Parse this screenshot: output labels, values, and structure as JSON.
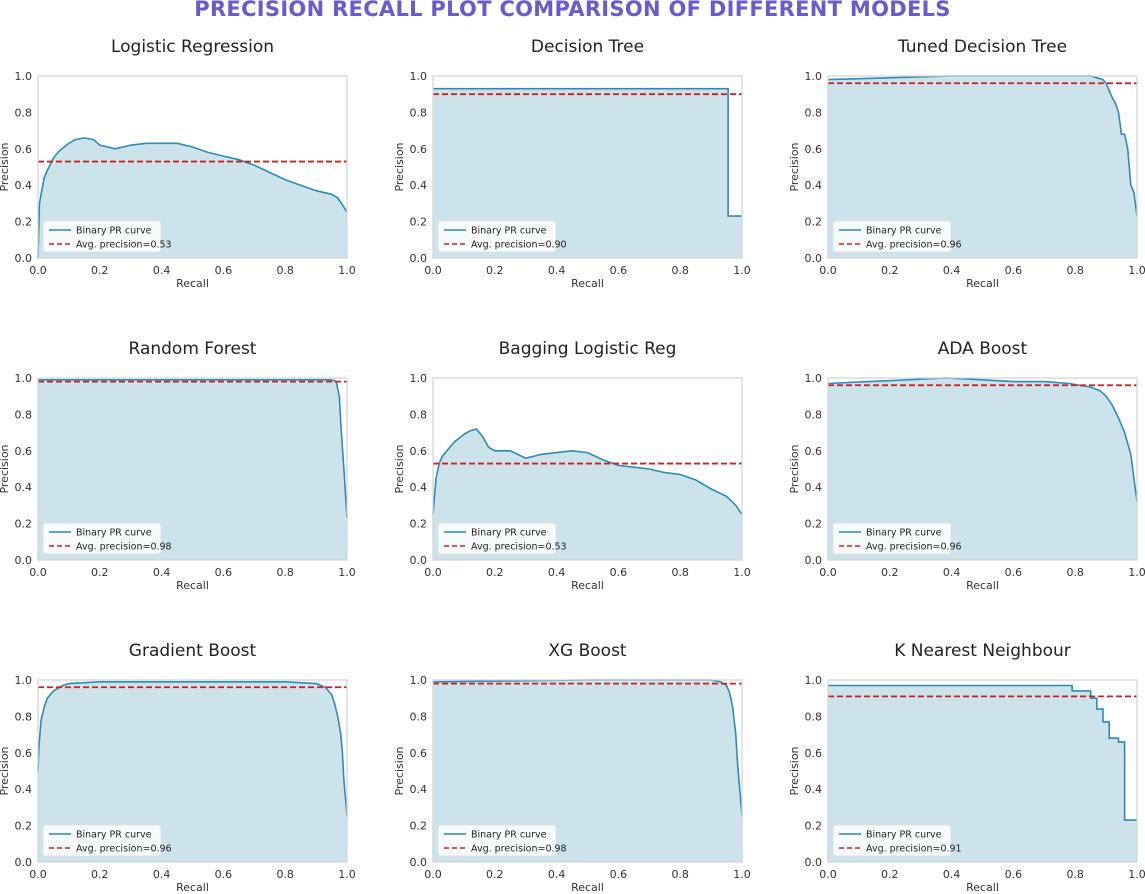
{
  "figure": {
    "suptitle": "PRECISION RECALL PLOT COMPARISON OF DIFFERENT MODELS",
    "colors": {
      "title": "#6a5acd",
      "curve": "#2e8bb5",
      "fill": "#cde3ec",
      "avg_line": "#cc1f1f",
      "axes": "#cfd3d8"
    }
  },
  "chart_data": [
    {
      "type": "area",
      "title": "Logistic Regression",
      "xlabel": "Recall",
      "ylabel": "Precision",
      "xlim": [
        0,
        1
      ],
      "ylim": [
        0,
        1
      ],
      "xticks": [
        "0.0",
        "0.2",
        "0.4",
        "0.6",
        "0.8",
        "1.0"
      ],
      "yticks": [
        "0.0",
        "0.2",
        "0.4",
        "0.6",
        "0.8",
        "1.0"
      ],
      "grid": false,
      "legend_position": "lower left",
      "legend": [
        "Binary PR curve",
        "Avg. precision=0.53"
      ],
      "avg_precision": 0.53,
      "curve": {
        "x": [
          0,
          0.005,
          0.01,
          0.02,
          0.03,
          0.05,
          0.07,
          0.1,
          0.12,
          0.15,
          0.18,
          0.2,
          0.25,
          0.3,
          0.35,
          0.4,
          0.45,
          0.5,
          0.55,
          0.6,
          0.65,
          0.7,
          0.75,
          0.8,
          0.85,
          0.9,
          0.95,
          0.97,
          0.99,
          1.0
        ],
        "y": [
          0.0,
          0.3,
          0.35,
          0.44,
          0.48,
          0.55,
          0.59,
          0.63,
          0.65,
          0.66,
          0.65,
          0.62,
          0.6,
          0.62,
          0.63,
          0.63,
          0.63,
          0.61,
          0.58,
          0.56,
          0.54,
          0.51,
          0.47,
          0.43,
          0.4,
          0.37,
          0.35,
          0.33,
          0.28,
          0.25
        ]
      }
    },
    {
      "type": "area",
      "title": "Decision Tree",
      "xlabel": "Recall",
      "ylabel": "Precision",
      "xlim": [
        0,
        1
      ],
      "ylim": [
        0,
        1
      ],
      "xticks": [
        "0.0",
        "0.2",
        "0.4",
        "0.6",
        "0.8",
        "1.0"
      ],
      "yticks": [
        "0.0",
        "0.2",
        "0.4",
        "0.6",
        "0.8",
        "1.0"
      ],
      "grid": false,
      "legend_position": "lower left",
      "legend": [
        "Binary PR curve",
        "Avg. precision=0.90"
      ],
      "avg_precision": 0.9,
      "curve": {
        "x": [
          0,
          0.955,
          0.955,
          1.0
        ],
        "y": [
          0.93,
          0.93,
          0.23,
          0.23
        ]
      }
    },
    {
      "type": "area",
      "title": "Tuned Decision Tree",
      "xlabel": "Recall",
      "ylabel": "Precision",
      "xlim": [
        0,
        1
      ],
      "ylim": [
        0,
        1
      ],
      "xticks": [
        "0.0",
        "0.2",
        "0.4",
        "0.6",
        "0.8",
        "1.0"
      ],
      "yticks": [
        "0.0",
        "0.2",
        "0.4",
        "0.6",
        "0.8",
        "1.0"
      ],
      "grid": false,
      "legend_position": "lower left",
      "legend": [
        "Binary PR curve",
        "Avg. precision=0.96"
      ],
      "avg_precision": 0.96,
      "curve": {
        "x": [
          0,
          0.4,
          0.85,
          0.87,
          0.89,
          0.9,
          0.91,
          0.92,
          0.93,
          0.94,
          0.95,
          0.96,
          0.97,
          0.98,
          0.99,
          1.0
        ],
        "y": [
          0.98,
          1.0,
          1.0,
          0.99,
          0.98,
          0.96,
          0.92,
          0.88,
          0.85,
          0.8,
          0.68,
          0.68,
          0.6,
          0.4,
          0.36,
          0.23
        ]
      }
    },
    {
      "type": "area",
      "title": "Random Forest",
      "xlabel": "Recall",
      "ylabel": "Precision",
      "xlim": [
        0,
        1
      ],
      "ylim": [
        0,
        1
      ],
      "xticks": [
        "0.0",
        "0.2",
        "0.4",
        "0.6",
        "0.8",
        "1.0"
      ],
      "yticks": [
        "0.0",
        "0.2",
        "0.4",
        "0.6",
        "0.8",
        "1.0"
      ],
      "grid": false,
      "legend_position": "lower left",
      "legend": [
        "Binary PR curve",
        "Avg. precision=0.98"
      ],
      "avg_precision": 0.98,
      "curve": {
        "x": [
          0,
          0.9,
          0.95,
          0.965,
          0.975,
          0.98,
          0.985,
          0.99,
          0.995,
          1.0
        ],
        "y": [
          0.99,
          0.99,
          0.99,
          0.98,
          0.9,
          0.75,
          0.62,
          0.5,
          0.36,
          0.23
        ]
      }
    },
    {
      "type": "area",
      "title": "Bagging Logistic Reg",
      "xlabel": "Recall",
      "ylabel": "Precision",
      "xlim": [
        0,
        1
      ],
      "ylim": [
        0,
        1
      ],
      "xticks": [
        "0.0",
        "0.2",
        "0.4",
        "0.6",
        "0.8",
        "1.0"
      ],
      "yticks": [
        "0.0",
        "0.2",
        "0.4",
        "0.6",
        "0.8",
        "1.0"
      ],
      "grid": false,
      "legend_position": "lower left",
      "legend": [
        "Binary PR curve",
        "Avg. precision=0.53"
      ],
      "avg_precision": 0.53,
      "curve": {
        "x": [
          0,
          0.005,
          0.01,
          0.02,
          0.03,
          0.05,
          0.07,
          0.1,
          0.12,
          0.14,
          0.16,
          0.18,
          0.2,
          0.25,
          0.3,
          0.35,
          0.4,
          0.45,
          0.5,
          0.55,
          0.6,
          0.65,
          0.7,
          0.75,
          0.8,
          0.85,
          0.9,
          0.95,
          0.98,
          1.0
        ],
        "y": [
          0.25,
          0.35,
          0.45,
          0.53,
          0.57,
          0.61,
          0.65,
          0.69,
          0.71,
          0.72,
          0.68,
          0.62,
          0.6,
          0.6,
          0.56,
          0.58,
          0.59,
          0.6,
          0.59,
          0.55,
          0.52,
          0.51,
          0.5,
          0.48,
          0.47,
          0.44,
          0.39,
          0.35,
          0.3,
          0.25
        ]
      }
    },
    {
      "type": "area",
      "title": "ADA Boost",
      "xlabel": "Recall",
      "ylabel": "Precision",
      "xlim": [
        0,
        1
      ],
      "ylim": [
        0,
        1
      ],
      "xticks": [
        "0.0",
        "0.2",
        "0.4",
        "0.6",
        "0.8",
        "1.0"
      ],
      "yticks": [
        "0.0",
        "0.2",
        "0.4",
        "0.6",
        "0.8",
        "1.0"
      ],
      "grid": false,
      "legend_position": "lower left",
      "legend": [
        "Binary PR curve",
        "Avg. precision=0.96"
      ],
      "avg_precision": 0.96,
      "curve": {
        "x": [
          0,
          0.38,
          0.5,
          0.6,
          0.7,
          0.78,
          0.85,
          0.88,
          0.9,
          0.92,
          0.94,
          0.96,
          0.98,
          0.99,
          1.0
        ],
        "y": [
          0.97,
          1.0,
          0.99,
          0.98,
          0.98,
          0.97,
          0.95,
          0.93,
          0.9,
          0.85,
          0.78,
          0.7,
          0.58,
          0.45,
          0.32
        ]
      }
    },
    {
      "type": "area",
      "title": "Gradient Boost",
      "xlabel": "Recall",
      "ylabel": "Precision",
      "xlim": [
        0,
        1
      ],
      "ylim": [
        0,
        1
      ],
      "xticks": [
        "0.0",
        "0.2",
        "0.4",
        "0.6",
        "0.8",
        "1.0"
      ],
      "yticks": [
        "0.0",
        "0.2",
        "0.4",
        "0.6",
        "0.8",
        "1.0"
      ],
      "grid": false,
      "legend_position": "lower left",
      "legend": [
        "Binary PR curve",
        "Avg. precision=0.96"
      ],
      "avg_precision": 0.96,
      "curve": {
        "x": [
          0,
          0.003,
          0.006,
          0.01,
          0.02,
          0.03,
          0.05,
          0.08,
          0.1,
          0.2,
          0.4,
          0.6,
          0.8,
          0.9,
          0.93,
          0.95,
          0.96,
          0.97,
          0.98,
          0.985,
          0.99,
          0.995,
          1.0
        ],
        "y": [
          0.5,
          0.63,
          0.7,
          0.78,
          0.85,
          0.9,
          0.94,
          0.97,
          0.98,
          0.99,
          0.99,
          0.99,
          0.99,
          0.98,
          0.96,
          0.92,
          0.87,
          0.8,
          0.7,
          0.6,
          0.45,
          0.35,
          0.25
        ]
      }
    },
    {
      "type": "area",
      "title": "XG Boost",
      "xlabel": "Recall",
      "ylabel": "Precision",
      "xlim": [
        0,
        1
      ],
      "ylim": [
        0,
        1
      ],
      "xticks": [
        "0.0",
        "0.2",
        "0.4",
        "0.6",
        "0.8",
        "1.0"
      ],
      "yticks": [
        "0.0",
        "0.2",
        "0.4",
        "0.6",
        "0.8",
        "1.0"
      ],
      "grid": false,
      "legend_position": "lower left",
      "legend": [
        "Binary PR curve",
        "Avg. precision=0.98"
      ],
      "avg_precision": 0.98,
      "curve": {
        "x": [
          0,
          0.5,
          0.9,
          0.93,
          0.95,
          0.96,
          0.97,
          0.98,
          0.985,
          0.99,
          0.995,
          1.0
        ],
        "y": [
          0.99,
          1.0,
          1.0,
          0.99,
          0.97,
          0.93,
          0.85,
          0.7,
          0.55,
          0.45,
          0.35,
          0.25
        ]
      }
    },
    {
      "type": "area",
      "title": "K Nearest Neighbour",
      "xlabel": "Recall",
      "ylabel": "Precision",
      "xlim": [
        0,
        1
      ],
      "ylim": [
        0,
        1
      ],
      "xticks": [
        "0.0",
        "0.2",
        "0.4",
        "0.6",
        "0.8",
        "1.0"
      ],
      "yticks": [
        "0.0",
        "0.2",
        "0.4",
        "0.6",
        "0.8",
        "1.0"
      ],
      "grid": false,
      "legend_position": "lower left",
      "legend": [
        "Binary PR curve",
        "Avg. precision=0.91"
      ],
      "avg_precision": 0.91,
      "step": true,
      "curve": {
        "x": [
          0,
          0.79,
          0.85,
          0.87,
          0.89,
          0.91,
          0.94,
          0.96,
          0.97,
          1.0
        ],
        "y": [
          0.97,
          0.94,
          0.9,
          0.84,
          0.77,
          0.68,
          0.66,
          0.23,
          0.23,
          0.23
        ]
      }
    }
  ]
}
